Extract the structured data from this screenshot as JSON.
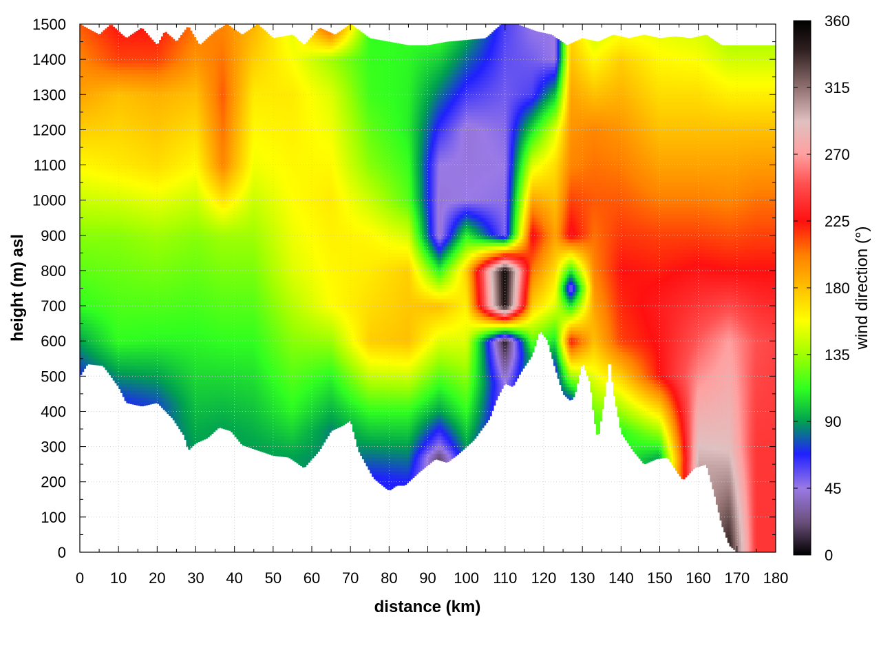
{
  "chart_data": {
    "type": "heatmap",
    "title": "",
    "xlabel": "distance (km)",
    "ylabel": "height (m) asl",
    "colorbar_label": "wind direction (°)",
    "xlim": [
      0,
      180
    ],
    "ylim": [
      0,
      1500
    ],
    "clim": [
      0,
      360
    ],
    "grid": true,
    "x_ticks": [
      0,
      10,
      20,
      30,
      40,
      50,
      60,
      70,
      80,
      90,
      100,
      110,
      120,
      130,
      140,
      150,
      160,
      170,
      180
    ],
    "y_ticks": [
      0,
      100,
      200,
      300,
      400,
      500,
      600,
      700,
      800,
      900,
      1000,
      1100,
      1200,
      1300,
      1400,
      1500
    ],
    "colorbar_ticks": [
      0,
      45,
      90,
      135,
      180,
      225,
      270,
      315,
      360
    ],
    "colormap": [
      {
        "value": 0,
        "color": "#000000"
      },
      {
        "value": 22,
        "color": "#6a4f7a"
      },
      {
        "value": 45,
        "color": "#9a7ae6"
      },
      {
        "value": 68,
        "color": "#2020ff"
      },
      {
        "value": 90,
        "color": "#00a050"
      },
      {
        "value": 112,
        "color": "#30ff20"
      },
      {
        "value": 135,
        "color": "#a0ff00"
      },
      {
        "value": 158,
        "color": "#ffff00"
      },
      {
        "value": 180,
        "color": "#ffc000"
      },
      {
        "value": 202,
        "color": "#ff8000"
      },
      {
        "value": 225,
        "color": "#ff1010"
      },
      {
        "value": 250,
        "color": "#ff5050"
      },
      {
        "value": 270,
        "color": "#ffa0a0"
      },
      {
        "value": 292,
        "color": "#e0c0c0"
      },
      {
        "value": 315,
        "color": "#907070"
      },
      {
        "value": 340,
        "color": "#302020"
      },
      {
        "value": 360,
        "color": "#000000"
      }
    ],
    "terrain_height_m": [
      [
        0,
        500
      ],
      [
        2,
        535
      ],
      [
        6,
        530
      ],
      [
        10,
        470
      ],
      [
        12,
        425
      ],
      [
        16,
        415
      ],
      [
        20,
        425
      ],
      [
        24,
        380
      ],
      [
        27,
        330
      ],
      [
        28,
        290
      ],
      [
        30,
        310
      ],
      [
        33,
        325
      ],
      [
        36,
        355
      ],
      [
        39,
        345
      ],
      [
        42,
        305
      ],
      [
        46,
        290
      ],
      [
        50,
        275
      ],
      [
        54,
        270
      ],
      [
        58,
        240
      ],
      [
        62,
        290
      ],
      [
        65,
        345
      ],
      [
        68,
        360
      ],
      [
        70,
        375
      ],
      [
        72,
        290
      ],
      [
        76,
        210
      ],
      [
        80,
        175
      ],
      [
        82,
        190
      ],
      [
        84,
        190
      ],
      [
        86,
        210
      ],
      [
        88,
        230
      ],
      [
        92,
        265
      ],
      [
        95,
        255
      ],
      [
        98,
        280
      ],
      [
        102,
        320
      ],
      [
        106,
        380
      ],
      [
        108,
        440
      ],
      [
        110,
        480
      ],
      [
        112,
        470
      ],
      [
        114,
        510
      ],
      [
        117,
        560
      ],
      [
        119,
        630
      ],
      [
        121,
        600
      ],
      [
        123,
        520
      ],
      [
        125,
        450
      ],
      [
        127,
        430
      ],
      [
        128,
        445
      ],
      [
        130,
        540
      ],
      [
        132,
        480
      ],
      [
        133,
        380
      ],
      [
        134,
        320
      ],
      [
        136,
        460
      ],
      [
        137,
        560
      ],
      [
        138,
        460
      ],
      [
        140,
        340
      ],
      [
        143,
        290
      ],
      [
        146,
        250
      ],
      [
        149,
        265
      ],
      [
        152,
        270
      ],
      [
        155,
        220
      ],
      [
        156,
        205
      ],
      [
        159,
        240
      ],
      [
        162,
        250
      ],
      [
        164,
        170
      ],
      [
        166,
        80
      ],
      [
        168,
        20
      ],
      [
        170,
        0
      ],
      [
        180,
        0
      ]
    ],
    "top_of_data_m": [
      [
        0,
        1500
      ],
      [
        5,
        1470
      ],
      [
        8,
        1500
      ],
      [
        12,
        1460
      ],
      [
        16,
        1490
      ],
      [
        20,
        1440
      ],
      [
        22,
        1480
      ],
      [
        25,
        1450
      ],
      [
        28,
        1495
      ],
      [
        31,
        1440
      ],
      [
        35,
        1480
      ],
      [
        38,
        1500
      ],
      [
        42,
        1470
      ],
      [
        46,
        1500
      ],
      [
        50,
        1460
      ],
      [
        55,
        1470
      ],
      [
        58,
        1440
      ],
      [
        62,
        1490
      ],
      [
        66,
        1470
      ],
      [
        70,
        1500
      ],
      [
        75,
        1460
      ],
      [
        80,
        1450
      ],
      [
        85,
        1440
      ],
      [
        90,
        1440
      ],
      [
        95,
        1450
      ],
      [
        100,
        1455
      ],
      [
        105,
        1460
      ],
      [
        109,
        1500
      ],
      [
        113,
        1500
      ],
      [
        118,
        1480
      ],
      [
        122,
        1470
      ],
      [
        126,
        1440
      ],
      [
        130,
        1460
      ],
      [
        134,
        1450
      ],
      [
        138,
        1470
      ],
      [
        142,
        1460
      ],
      [
        146,
        1470
      ],
      [
        150,
        1460
      ],
      [
        154,
        1465
      ],
      [
        158,
        1460
      ],
      [
        162,
        1470
      ],
      [
        166,
        1440
      ],
      [
        172,
        1440
      ],
      [
        180,
        1440
      ]
    ],
    "wind_direction_profiles": [
      {
        "x": 0,
        "heights": [
          500,
          700,
          900,
          1100,
          1300,
          1400,
          1500
        ],
        "directions": [
          70,
          112,
          130,
          160,
          190,
          200,
          210
        ]
      },
      {
        "x": 10,
        "heights": [
          430,
          600,
          900,
          1100,
          1300,
          1400,
          1500
        ],
        "directions": [
          70,
          112,
          130,
          165,
          180,
          215,
          225
        ]
      },
      {
        "x": 20,
        "heights": [
          420,
          600,
          900,
          1100,
          1300,
          1400,
          1500
        ],
        "directions": [
          75,
          110,
          135,
          170,
          185,
          215,
          225
        ]
      },
      {
        "x": 30,
        "heights": [
          310,
          600,
          900,
          1100,
          1300,
          1400,
          1500
        ],
        "directions": [
          90,
          110,
          130,
          160,
          180,
          195,
          205
        ]
      },
      {
        "x": 37,
        "heights": [
          345,
          600,
          900,
          1100,
          1300,
          1400,
          1500
        ],
        "directions": [
          90,
          112,
          135,
          200,
          210,
          205,
          200
        ]
      },
      {
        "x": 45,
        "heights": [
          295,
          600,
          900,
          1100,
          1300,
          1400,
          1500
        ],
        "directions": [
          90,
          112,
          135,
          155,
          165,
          175,
          185
        ]
      },
      {
        "x": 55,
        "heights": [
          270,
          400,
          600,
          800,
          1000,
          1300,
          1500
        ],
        "directions": [
          90,
          110,
          130,
          150,
          158,
          165,
          150
        ]
      },
      {
        "x": 65,
        "heights": [
          345,
          500,
          700,
          1000,
          1300,
          1400,
          1500
        ],
        "directions": [
          85,
          110,
          158,
          165,
          150,
          135,
          225
        ]
      },
      {
        "x": 75,
        "heights": [
          215,
          400,
          600,
          900,
          1100,
          1300,
          1500
        ],
        "directions": [
          68,
          112,
          175,
          160,
          130,
          115,
          112
        ]
      },
      {
        "x": 85,
        "heights": [
          200,
          400,
          600,
          800,
          1000,
          1200,
          1500
        ],
        "directions": [
          68,
          112,
          180,
          175,
          120,
          108,
          112
        ]
      },
      {
        "x": 93,
        "heights": [
          270,
          300,
          400,
          700,
          900,
          1100,
          1500
        ],
        "directions": [
          20,
          45,
          90,
          180,
          40,
          45,
          120
        ]
      },
      {
        "x": 100,
        "heights": [
          280,
          400,
          600,
          800,
          1000,
          1200,
          1500
        ],
        "directions": [
          85,
          112,
          150,
          175,
          45,
          42,
          100
        ]
      },
      {
        "x": 110,
        "heights": [
          480,
          600,
          700,
          800,
          900,
          1100,
          1500
        ],
        "directions": [
          45,
          5,
          350,
          355,
          50,
          45,
          60
        ]
      },
      {
        "x": 117,
        "heights": [
          560,
          700,
          900,
          1000,
          1100,
          1300,
          1500
        ],
        "directions": [
          100,
          175,
          230,
          190,
          150,
          60,
          45
        ]
      },
      {
        "x": 123,
        "heights": [
          520,
          700,
          900,
          1100,
          1200,
          1400,
          1500
        ],
        "directions": [
          68,
          150,
          190,
          170,
          150,
          45,
          45
        ]
      },
      {
        "x": 127,
        "heights": [
          430,
          600,
          750,
          900,
          1100,
          1300,
          1500
        ],
        "directions": [
          70,
          225,
          45,
          230,
          200,
          190,
          170
        ]
      },
      {
        "x": 133,
        "heights": [
          380,
          600,
          800,
          1000,
          1200,
          1400,
          1500
        ],
        "directions": [
          120,
          180,
          200,
          210,
          200,
          160,
          140
        ]
      },
      {
        "x": 140,
        "heights": [
          340,
          600,
          800,
          1000,
          1200,
          1400,
          1500
        ],
        "directions": [
          110,
          215,
          225,
          210,
          195,
          175,
          150
        ]
      },
      {
        "x": 150,
        "heights": [
          265,
          500,
          700,
          900,
          1100,
          1300,
          1500
        ],
        "directions": [
          90,
          225,
          230,
          215,
          190,
          170,
          150
        ]
      },
      {
        "x": 160,
        "heights": [
          245,
          500,
          700,
          900,
          1100,
          1300,
          1500
        ],
        "directions": [
          300,
          265,
          240,
          215,
          190,
          170,
          145
        ]
      },
      {
        "x": 168,
        "heights": [
          20,
          300,
          600,
          800,
          1000,
          1200,
          1440
        ],
        "directions": [
          340,
          290,
          270,
          225,
          200,
          180,
          140
        ]
      },
      {
        "x": 175,
        "heights": [
          0,
          300,
          600,
          800,
          1000,
          1200,
          1440
        ],
        "directions": [
          240,
          240,
          250,
          225,
          205,
          180,
          140
        ]
      },
      {
        "x": 180,
        "heights": [
          0,
          300,
          600,
          800,
          1000,
          1200,
          1440
        ],
        "directions": [
          240,
          240,
          245,
          225,
          205,
          180,
          140
        ]
      }
    ]
  }
}
